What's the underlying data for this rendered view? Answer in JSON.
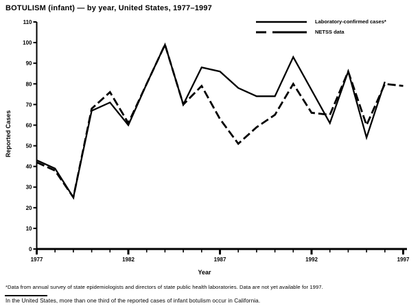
{
  "title": "BOTULISM (infant) — by year, United States, 1977–1997",
  "legend": {
    "items": [
      {
        "label": "Laboratory-confirmed cases*",
        "style": "solid"
      },
      {
        "label": "NETSS data",
        "style": "dashed"
      }
    ]
  },
  "chart_data": {
    "type": "line",
    "title": "BOTULISM (infant) — by year, United States, 1977–1997",
    "xlabel": "Year",
    "ylabel": "Reported Cases",
    "ylim": [
      0,
      110
    ],
    "yticks": [
      0,
      10,
      20,
      30,
      40,
      50,
      60,
      70,
      80,
      90,
      100,
      110
    ],
    "x": [
      1977,
      1978,
      1979,
      1980,
      1981,
      1982,
      1983,
      1984,
      1985,
      1986,
      1987,
      1988,
      1989,
      1990,
      1991,
      1992,
      1993,
      1994,
      1995,
      1996,
      1997
    ],
    "xticks_major": [
      1977,
      1982,
      1987,
      1992,
      1997
    ],
    "xticks_minor_every": 1,
    "grid": false,
    "legend_position": "top-right",
    "series": [
      {
        "name": "Laboratory-confirmed cases*",
        "style": "solid",
        "values": [
          43,
          39,
          25,
          67,
          71,
          60,
          80,
          99,
          70,
          88,
          86,
          78,
          74,
          74,
          93,
          77,
          61,
          86,
          54,
          81,
          null
        ]
      },
      {
        "name": "NETSS data",
        "style": "dashed",
        "values": [
          42,
          38,
          25,
          68,
          76,
          61,
          80,
          99,
          70,
          79,
          63,
          51,
          59,
          65,
          80,
          66,
          65,
          86,
          60,
          80,
          79
        ]
      }
    ]
  },
  "footnotes": {
    "note1": "*Data from annual survey of state epidemiologists and directors of state public health laboratories. Data are not yet available for 1997.",
    "note2": "In the United States, more than one third of the reported cases of infant botulism occur in California."
  },
  "colors": {
    "line": "#000000",
    "background": "#ffffff"
  }
}
